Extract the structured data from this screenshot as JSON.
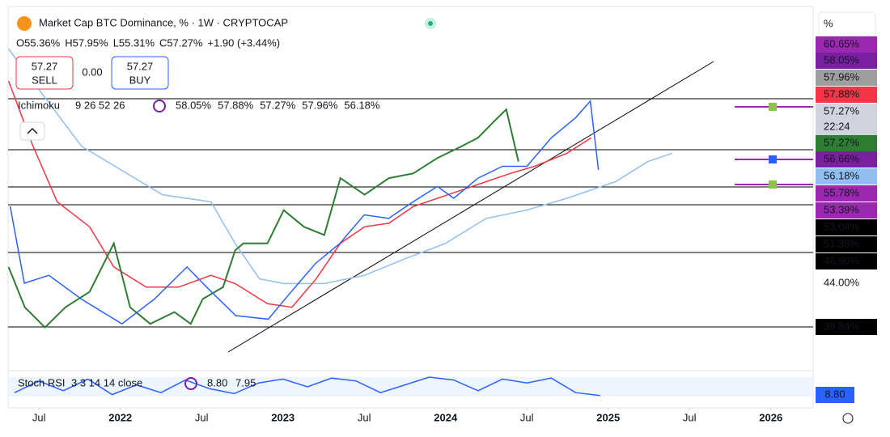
{
  "header": {
    "title": "Market Cap BTC Dominance, % · 1W · CRYPTOCAP",
    "ohlc": [
      {
        "text": "O55.36%"
      },
      {
        "text": "H57.95%"
      },
      {
        "text": "L55.31%"
      },
      {
        "text": "C57.27%"
      },
      {
        "text": "+1.90 (+3.44%)"
      }
    ],
    "sell_price": "57.27",
    "sell": "SELL",
    "spread": "0.00",
    "buy_price": "57.27",
    "buy": "BUY",
    "scale_mode": "%"
  },
  "ichimoku": {
    "name": "Ichimoku",
    "params": "9 26 52 26",
    "values": [
      {
        "text": "58.05%",
        "color": "#7b1fa2"
      },
      {
        "text": "57.88%",
        "color": "#f23645"
      },
      {
        "text": "57.27%",
        "color": "#2e7d32"
      },
      {
        "text": "57.96%",
        "color": "#8a8a8a"
      },
      {
        "text": "56.18%",
        "color": "#90bff0"
      }
    ]
  },
  "stoch": {
    "name": "Stoch RSI",
    "params": "3 3 14 14 close",
    "k": "8.80",
    "d": "7.95",
    "k_color": "#2962ff",
    "d_color": "#ff6d00",
    "axis_label": "8.80"
  },
  "price_scale": [
    {
      "text": "60.65%",
      "bg": "#9c27b0",
      "fg": "#ffffff"
    },
    {
      "text": "58.05%",
      "bg": "#7b1fa2",
      "fg": "#ffffff"
    },
    {
      "text": "57.96%",
      "bg": "#9e9e9e",
      "fg": "#131722"
    },
    {
      "text": "57.88%",
      "bg": "#f23645",
      "fg": "#ffffff"
    },
    {
      "text": "57.27%",
      "bg": "#d1d4dc",
      "fg": "#131722"
    },
    {
      "text": "22:24",
      "bg": "#d1d4dc",
      "fg": "#131722"
    },
    {
      "text": "57.27%",
      "bg": "#2e7d32",
      "fg": "#ffffff"
    },
    {
      "text": "56.66%",
      "bg": "#7b1fa2",
      "fg": "#ffffff"
    },
    {
      "text": "56.18%",
      "bg": "#90bff0",
      "fg": "#131722"
    },
    {
      "text": "55.78%",
      "bg": "#9c27b0",
      "fg": "#ffffff"
    },
    {
      "text": "53.39%",
      "bg": "#9c27b0",
      "fg": "#ffffff"
    },
    {
      "text": "53.04%",
      "bg": "#000000",
      "fg": "#ffffff"
    },
    {
      "text": "51.38%",
      "bg": "#000000",
      "fg": "#ffffff"
    },
    {
      "text": "46.90%",
      "bg": "#000000",
      "fg": "#ffffff"
    },
    {
      "text": "44.00%",
      "bg": "#ffffff",
      "fg": "#131722"
    },
    {
      "text": "39.84%",
      "bg": "#000000",
      "fg": "#ffffff"
    }
  ],
  "chart_data": {
    "type": "line",
    "xlim": [
      2021.31,
      2026.26
    ],
    "ylim": [
      36.36,
      66.75
    ],
    "xticks": [
      {
        "value": 2021.5,
        "label": "Jul"
      },
      2022,
      {
        "value": 2022.5,
        "label": "Jul"
      },
      2023,
      {
        "value": 2023.5,
        "label": "Jul"
      },
      2024,
      {
        "value": 2024.5,
        "label": "Jul"
      },
      2025,
      {
        "value": 2025.5,
        "label": "Jul"
      },
      2026
    ],
    "series": [
      {
        "color": "#90bff0",
        "x": [
          2021.313,
          2021.761,
          2022.259,
          2022.557,
          2022.706,
          2022.856,
          2023.005,
          2023.254,
          2023.502,
          2023.751,
          2024.0,
          2024.249,
          2024.498,
          2024.746,
          2025.045,
          2025.244,
          2025.393
        ],
        "values": [
          63.3,
          55.1,
          51.0,
          50.4,
          46.9,
          43.9,
          43.5,
          43.5,
          44.2,
          45.6,
          46.9,
          49.0,
          49.7,
          50.7,
          52.1,
          53.8,
          54.5
        ]
      },
      {
        "color": "#f23645",
        "x": [
          2021.313,
          2021.463,
          2021.612,
          2021.811,
          2021.96,
          2022.159,
          2022.358,
          2022.557,
          2022.706,
          2022.905,
          2023.055,
          2023.204,
          2023.353,
          2023.502,
          2023.652,
          2023.801,
          2023.95,
          2024.1,
          2024.249,
          2024.398,
          2024.547,
          2024.746,
          2024.896
        ],
        "values": [
          60.6,
          55.1,
          50.4,
          48.3,
          44.9,
          43.2,
          43.2,
          44.2,
          43.5,
          41.8,
          41.5,
          43.9,
          46.9,
          48.3,
          48.6,
          50.0,
          50.7,
          51.4,
          52.1,
          52.8,
          53.4,
          54.5,
          55.8
        ]
      },
      {
        "color": "#2e7d32",
        "x": [
          2021.313,
          2021.413,
          2021.537,
          2021.662,
          2021.811,
          2021.96,
          2022.06,
          2022.184,
          2022.333,
          2022.433,
          2022.507,
          2022.632,
          2022.706,
          2022.756,
          2022.905,
          2023.005,
          2023.129,
          2023.254,
          2023.353,
          2023.502,
          2023.652,
          2023.801,
          2023.95,
          2024.1,
          2024.199,
          2024.299,
          2024.373,
          2024.448
        ],
        "values": [
          44.9,
          41.5,
          39.8,
          41.5,
          42.8,
          46.9,
          41.5,
          40.1,
          41.1,
          40.1,
          42.2,
          43.2,
          46.3,
          46.9,
          46.9,
          49.7,
          48.3,
          47.6,
          52.4,
          51.0,
          52.4,
          52.8,
          54.1,
          55.1,
          55.8,
          57.2,
          58.2,
          53.8
        ]
      },
      {
        "color": "#2962ff",
        "x": [
          2021.323,
          2021.41,
          2021.56,
          2021.76,
          2022.01,
          2022.21,
          2022.41,
          2022.56,
          2022.71,
          2022.91,
          2023.05,
          2023.2,
          2023.35,
          2023.5,
          2023.65,
          2023.8,
          2023.95,
          2024.05,
          2024.2,
          2024.35,
          2024.5,
          2024.65,
          2024.8,
          2024.89,
          2024.94
        ],
        "values": [
          50.02,
          43.53,
          44.2,
          42.2,
          40.1,
          42.2,
          44.9,
          42.8,
          40.8,
          40.5,
          42.8,
          45.2,
          46.9,
          49.3,
          49.0,
          50.4,
          51.7,
          50.7,
          52.4,
          53.4,
          53.4,
          55.8,
          57.5,
          58.9,
          53.1
        ]
      }
    ],
    "stoch_series": {
      "color": "#2962ff",
      "ylim": [
        0,
        100
      ],
      "x": [
        2021.35,
        2021.5,
        2021.65,
        2021.8,
        2021.95,
        2022.1,
        2022.25,
        2022.4,
        2022.55,
        2022.7,
        2022.85,
        2023.0,
        2023.15,
        2023.3,
        2023.45,
        2023.6,
        2023.75,
        2023.9,
        2024.05,
        2024.2,
        2024.35,
        2024.5,
        2024.65,
        2024.8,
        2024.95
      ],
      "values": [
        20,
        80,
        30,
        90,
        10,
        60,
        20,
        85,
        40,
        15,
        70,
        90,
        50,
        95,
        80,
        20,
        60,
        100,
        85,
        30,
        90,
        70,
        95,
        20,
        5
      ]
    }
  }
}
